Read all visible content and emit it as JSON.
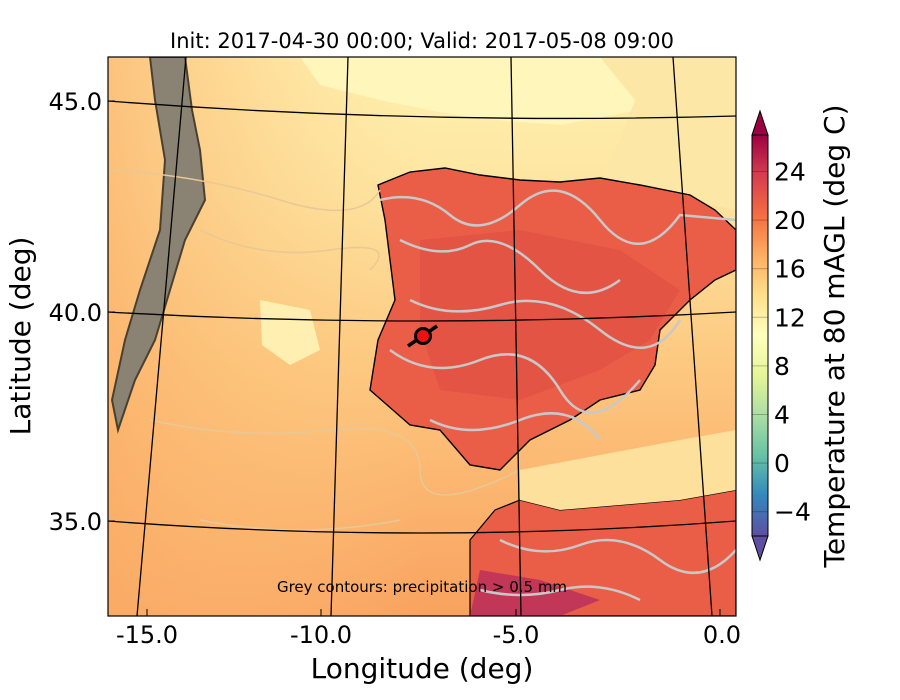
{
  "title": "Init: 2017-04-30 00:00; Valid: 2017-05-08 09:00",
  "xlabel": "Longitude (deg)",
  "ylabel": "Latitude (deg)",
  "x_ticks": [
    "-15.0",
    "-10.0",
    "-5.0",
    "0.0"
  ],
  "y_ticks": [
    "45.0",
    "40.0",
    "35.0"
  ],
  "colorbar": {
    "label": "Temperature at 80 mAGL (deg C)",
    "ticks": [
      "24",
      "20",
      "16",
      "12",
      "8",
      "4",
      "0",
      "−4"
    ],
    "range": [
      -6,
      27
    ],
    "extend": "both",
    "colormap": "Spectral_r"
  },
  "annotation": "Grey contours: precipitation > 0.5 mm",
  "marker": {
    "color": "#ee1111",
    "edge_color": "#000000"
  },
  "colors": {
    "ocean_warm": "#f9a25f",
    "ocean_mid": "#fdd28a",
    "ocean_cool": "#fff2b0",
    "land": "#ea5e48",
    "land_hot": "#c23658",
    "precip_contour": "#c8c8c8"
  }
}
